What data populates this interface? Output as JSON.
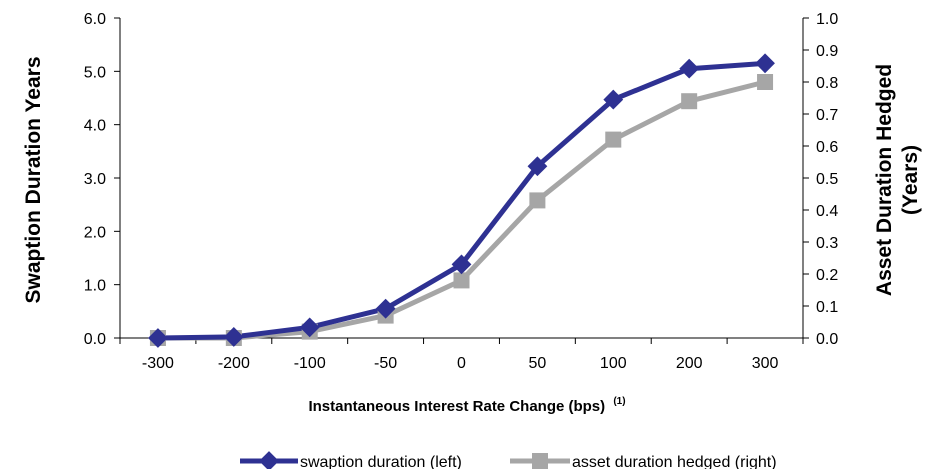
{
  "chart_data": {
    "type": "line",
    "categories": [
      "-300",
      "-200",
      "-100",
      "-50",
      "0",
      "50",
      "100",
      "200",
      "300"
    ],
    "series": [
      {
        "name": "swaption duration (left)",
        "axis": "left",
        "color": "#2e3192",
        "marker": "diamond",
        "values": [
          0.0,
          0.02,
          0.2,
          0.55,
          1.38,
          3.22,
          4.47,
          5.05,
          5.15
        ]
      },
      {
        "name": "asset duration hedged (right)",
        "axis": "right",
        "color": "#a6a6a6",
        "marker": "square",
        "values": [
          0.0,
          0.0,
          0.02,
          0.07,
          0.18,
          0.43,
          0.62,
          0.74,
          0.8
        ]
      }
    ],
    "ylabel": "Swaption Duration Years",
    "y2label_line1": "Asset Duration Hedged",
    "y2label_line2": "(Years)",
    "xlabel": "Instantaneous Interest Rate Change (bps)",
    "xlabel_sup": "(1)",
    "ylim": [
      0,
      6
    ],
    "y2lim": [
      0,
      1
    ],
    "yticks": [
      "0.0",
      "1.0",
      "2.0",
      "3.0",
      "4.0",
      "5.0",
      "6.0"
    ],
    "y2ticks": [
      "0.0",
      "0.1",
      "0.2",
      "0.3",
      "0.4",
      "0.5",
      "0.6",
      "0.7",
      "0.8",
      "0.9",
      "1.0"
    ],
    "grid": false,
    "legend_position": "bottom-center"
  }
}
